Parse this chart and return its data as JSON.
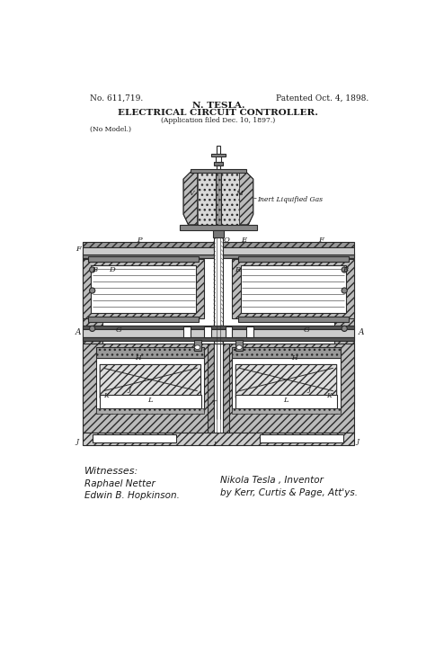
{
  "bg_color": "#ffffff",
  "patent_number": "No. 611,719.",
  "patent_date": "Patented Oct. 4, 1898.",
  "inventor_name": "N. TESLA.",
  "invention_title": "ELECTRICAL CIRCUIT CONTROLLER.",
  "application_line": "(Application filed Dec. 10, 1897.)",
  "no_model": "(No Model.)",
  "witnesses_label": "Witnesses:",
  "witness1": "Raphael Netter",
  "witness2": "Edwin B. Hopkinson.",
  "inventor_label": "Nikola Tesla , Inventor",
  "attorney_label": "by Kerr, Curtis & Page, Att'ys.",
  "annotation_gas": "Inert Liquified Gas",
  "fig_width": 4.74,
  "fig_height": 7.35,
  "line_color": "#2a2a2a",
  "hatch_color": "#555555",
  "gray_fill": "#cccccc",
  "dark_fill": "#888888",
  "mid_fill": "#aaaaaa"
}
